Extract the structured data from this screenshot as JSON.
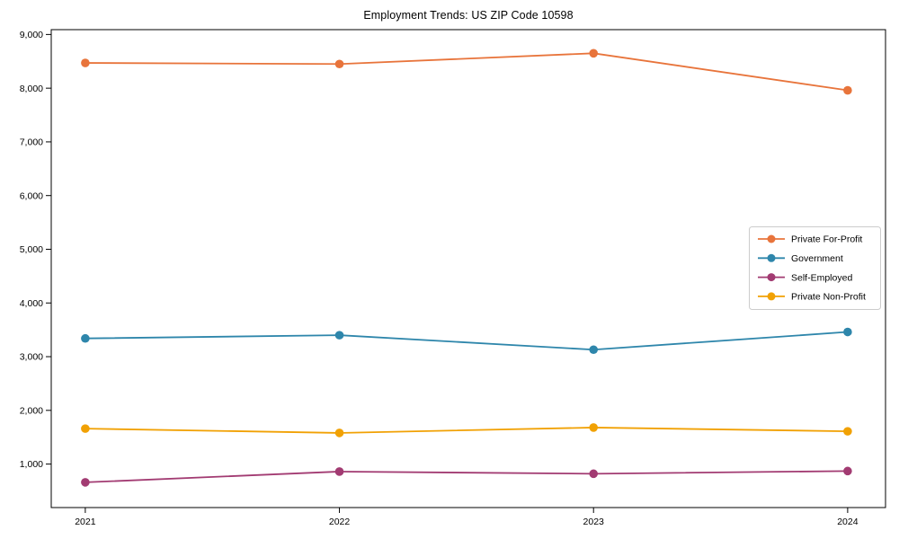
{
  "chart_data": {
    "type": "line",
    "title": "Employment Trends: US ZIP Code 10598",
    "xlabel": "",
    "ylabel": "",
    "x": [
      2021,
      2022,
      2023,
      2024
    ],
    "x_tick_labels": [
      "2021",
      "2022",
      "2023",
      "2024"
    ],
    "series": [
      {
        "name": "Private For-Profit",
        "color": "#E8743B",
        "values": [
          8470,
          8450,
          8650,
          7960
        ]
      },
      {
        "name": "Government",
        "color": "#2E86AB",
        "values": [
          3340,
          3400,
          3130,
          3460
        ]
      },
      {
        "name": "Self-Employed",
        "color": "#A23B72",
        "values": [
          660,
          860,
          820,
          870
        ]
      },
      {
        "name": "Private Non-Profit",
        "color": "#F1A104",
        "values": [
          1660,
          1580,
          1680,
          1610
        ]
      }
    ],
    "yticks": [
      1000,
      2000,
      3000,
      4000,
      5000,
      6000,
      7000,
      8000,
      9000
    ],
    "ytick_labels": [
      "1,000",
      "2,000",
      "3,000",
      "4,000",
      "5,000",
      "6,000",
      "7,000",
      "8,000",
      "9,000"
    ],
    "ylim": [
      190,
      9090
    ],
    "xlim": [
      2020.866,
      2024.149
    ],
    "grid": false,
    "legend_position": "center-right",
    "marker": "circle",
    "colors": {
      "axis": "#000000",
      "tick_label": "#000000",
      "legend_border": "#cccccc",
      "background": "#ffffff"
    }
  }
}
